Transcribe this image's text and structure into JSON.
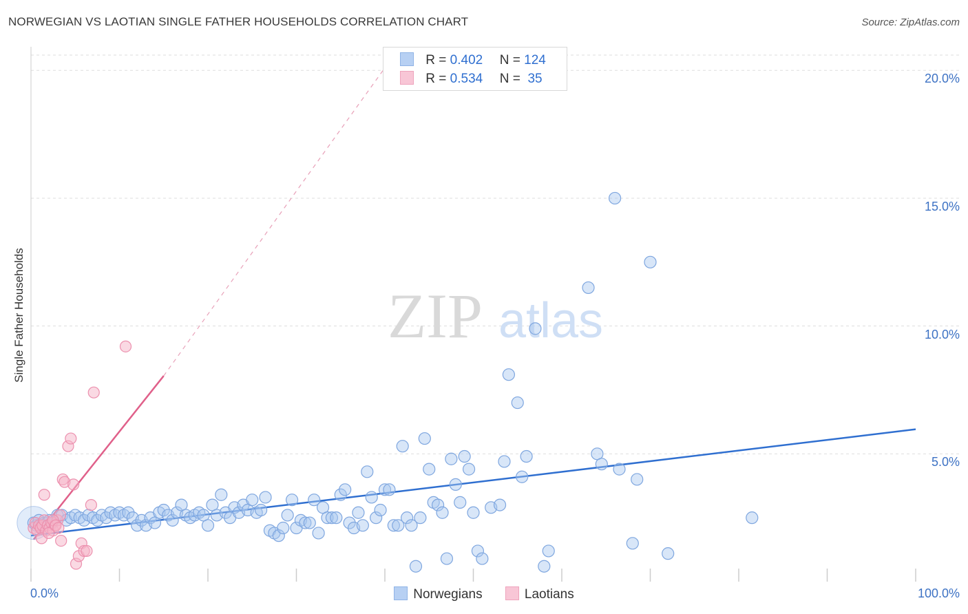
{
  "title": "NORWEGIAN VS LAOTIAN SINGLE FATHER HOUSEHOLDS CORRELATION CHART",
  "source": "Source: ZipAtlas.com",
  "watermark": {
    "part1": "ZIP",
    "part2": "atlas"
  },
  "colors": {
    "blue": "#2f6fd0",
    "blue_fill": "#a9c8f0",
    "pink": "#e0608a",
    "pink_fill": "#f5b3c8",
    "grid": "#dddddd",
    "tick_text": "#3d72c4"
  },
  "legend_top": [
    {
      "r_label": "R =",
      "r": "0.402",
      "n_label": "N =",
      "n": "124"
    },
    {
      "r_label": "R =",
      "r": "0.534",
      "n_label": "N =",
      "n": " 35"
    }
  ],
  "legend_bottom": [
    "Norwegians",
    "Laotians"
  ],
  "chart_data": {
    "type": "scatter",
    "title": "NORWEGIAN VS LAOTIAN SINGLE FATHER HOUSEHOLDS CORRELATION CHART",
    "xlabel": "",
    "ylabel": "Single Father Households",
    "xlim": [
      0,
      100
    ],
    "ylim": [
      0,
      20.6
    ],
    "x_ticks": [
      "0.0%",
      "100.0%"
    ],
    "y_ticks": [
      {
        "value": 5,
        "label": "5.0%"
      },
      {
        "value": 10,
        "label": "10.0%"
      },
      {
        "value": 15,
        "label": "15.0%"
      },
      {
        "value": 20,
        "label": "20.0%"
      }
    ],
    "grid": true,
    "legend_position": "top-center",
    "series": [
      {
        "name": "Norwegians",
        "color": "#2f6fd0",
        "trend": {
          "x": [
            0,
            100
          ],
          "y": [
            1.8,
            5.96
          ]
        },
        "points": [
          [
            0.3,
            2.3
          ],
          [
            0.6,
            2.2
          ],
          [
            0.9,
            2.4
          ],
          [
            1.2,
            2.2
          ],
          [
            1.5,
            2.3
          ],
          [
            1.8,
            2.3
          ],
          [
            2.1,
            2.4
          ],
          [
            2.4,
            2.3
          ],
          [
            3,
            2.6
          ],
          [
            3.5,
            2.6
          ],
          [
            4,
            2.4
          ],
          [
            4.5,
            2.5
          ],
          [
            5,
            2.6
          ],
          [
            5.5,
            2.5
          ],
          [
            6,
            2.4
          ],
          [
            6.5,
            2.6
          ],
          [
            7,
            2.5
          ],
          [
            7.5,
            2.4
          ],
          [
            8,
            2.6
          ],
          [
            8.5,
            2.5
          ],
          [
            9,
            2.7
          ],
          [
            9.5,
            2.6
          ],
          [
            10,
            2.7
          ],
          [
            10.5,
            2.6
          ],
          [
            11,
            2.7
          ],
          [
            11.5,
            2.5
          ],
          [
            12,
            2.2
          ],
          [
            12.5,
            2.4
          ],
          [
            13,
            2.2
          ],
          [
            13.5,
            2.5
          ],
          [
            14,
            2.3
          ],
          [
            14.5,
            2.7
          ],
          [
            15,
            2.8
          ],
          [
            15.5,
            2.6
          ],
          [
            16,
            2.4
          ],
          [
            16.5,
            2.7
          ],
          [
            17,
            3.0
          ],
          [
            17.5,
            2.6
          ],
          [
            18,
            2.5
          ],
          [
            18.5,
            2.6
          ],
          [
            19,
            2.7
          ],
          [
            19.5,
            2.6
          ],
          [
            20,
            2.2
          ],
          [
            20.5,
            3.0
          ],
          [
            21,
            2.6
          ],
          [
            21.5,
            3.4
          ],
          [
            22,
            2.7
          ],
          [
            22.5,
            2.5
          ],
          [
            23,
            2.9
          ],
          [
            23.5,
            2.7
          ],
          [
            24,
            3.0
          ],
          [
            24.5,
            2.8
          ],
          [
            25,
            3.2
          ],
          [
            25.5,
            2.7
          ],
          [
            26,
            2.8
          ],
          [
            26.5,
            3.3
          ],
          [
            27,
            2.0
          ],
          [
            27.5,
            1.9
          ],
          [
            28,
            1.8
          ],
          [
            28.5,
            2.1
          ],
          [
            29,
            2.6
          ],
          [
            29.5,
            3.2
          ],
          [
            30,
            2.1
          ],
          [
            30.5,
            2.4
          ],
          [
            31,
            2.3
          ],
          [
            31.5,
            2.3
          ],
          [
            32,
            3.2
          ],
          [
            32.5,
            1.9
          ],
          [
            33,
            2.9
          ],
          [
            33.5,
            2.5
          ],
          [
            34,
            2.5
          ],
          [
            34.5,
            2.5
          ],
          [
            35,
            3.4
          ],
          [
            35.5,
            3.6
          ],
          [
            36,
            2.3
          ],
          [
            36.5,
            2.1
          ],
          [
            37,
            2.7
          ],
          [
            37.5,
            2.2
          ],
          [
            38,
            4.3
          ],
          [
            38.5,
            3.3
          ],
          [
            39,
            2.5
          ],
          [
            39.5,
            2.8
          ],
          [
            40,
            3.6
          ],
          [
            40.5,
            3.6
          ],
          [
            41,
            2.2
          ],
          [
            41.5,
            2.2
          ],
          [
            42,
            5.3
          ],
          [
            42.5,
            2.5
          ],
          [
            43,
            2.2
          ],
          [
            43.5,
            0.6
          ],
          [
            44,
            2.5
          ],
          [
            44.5,
            5.6
          ],
          [
            45,
            4.4
          ],
          [
            45.5,
            3.1
          ],
          [
            46,
            3.0
          ],
          [
            46.5,
            2.7
          ],
          [
            47,
            0.9
          ],
          [
            47.5,
            4.8
          ],
          [
            48,
            3.8
          ],
          [
            48.5,
            3.1
          ],
          [
            49,
            4.9
          ],
          [
            49.5,
            4.4
          ],
          [
            50,
            2.7
          ],
          [
            50.5,
            1.2
          ],
          [
            51,
            0.9
          ],
          [
            52,
            2.9
          ],
          [
            53,
            3.0
          ],
          [
            53.5,
            4.7
          ],
          [
            54,
            8.1
          ],
          [
            55,
            7.0
          ],
          [
            55.5,
            4.1
          ],
          [
            56,
            4.9
          ],
          [
            57,
            9.9
          ],
          [
            58,
            0.6
          ],
          [
            58.5,
            1.2
          ],
          [
            63,
            11.5
          ],
          [
            64,
            5.0
          ],
          [
            64.5,
            4.6
          ],
          [
            66,
            15.0
          ],
          [
            66.5,
            4.4
          ],
          [
            68,
            1.5
          ],
          [
            68.5,
            4.0
          ],
          [
            70,
            12.5
          ],
          [
            72,
            1.1
          ],
          [
            81.5,
            2.5
          ]
        ]
      },
      {
        "name": "Laotians",
        "color": "#e0608a",
        "trend": {
          "x": [
            0.3,
            15
          ],
          "y": [
            1.65,
            8.05
          ]
        },
        "trend_extended": {
          "x": [
            15,
            40
          ],
          "y": [
            8.05,
            20.1
          ]
        },
        "points": [
          [
            0.3,
            2.1
          ],
          [
            0.5,
            2.3
          ],
          [
            0.7,
            2.0
          ],
          [
            0.9,
            2.2
          ],
          [
            1.1,
            2.1
          ],
          [
            1.3,
            2.2
          ],
          [
            1.5,
            2.4
          ],
          [
            1.7,
            2.0
          ],
          [
            1.9,
            2.2
          ],
          [
            2.1,
            2.1
          ],
          [
            2.3,
            2.3
          ],
          [
            2.5,
            2.0
          ],
          [
            2.7,
            2.2
          ],
          [
            3.0,
            2.4
          ],
          [
            3.3,
            2.6
          ],
          [
            1.2,
            1.7
          ],
          [
            1.5,
            3.4
          ],
          [
            2.0,
            1.9
          ],
          [
            2.5,
            2.4
          ],
          [
            2.8,
            2.2
          ],
          [
            3.1,
            2.1
          ],
          [
            3.4,
            1.6
          ],
          [
            3.6,
            4.0
          ],
          [
            3.8,
            3.9
          ],
          [
            4.2,
            5.3
          ],
          [
            4.5,
            5.6
          ],
          [
            4.8,
            3.8
          ],
          [
            5.1,
            0.7
          ],
          [
            5.4,
            1.0
          ],
          [
            5.7,
            1.5
          ],
          [
            6.0,
            1.2
          ],
          [
            6.3,
            1.2
          ],
          [
            6.8,
            3.0
          ],
          [
            7.1,
            7.4
          ],
          [
            10.7,
            9.2
          ]
        ]
      }
    ]
  }
}
